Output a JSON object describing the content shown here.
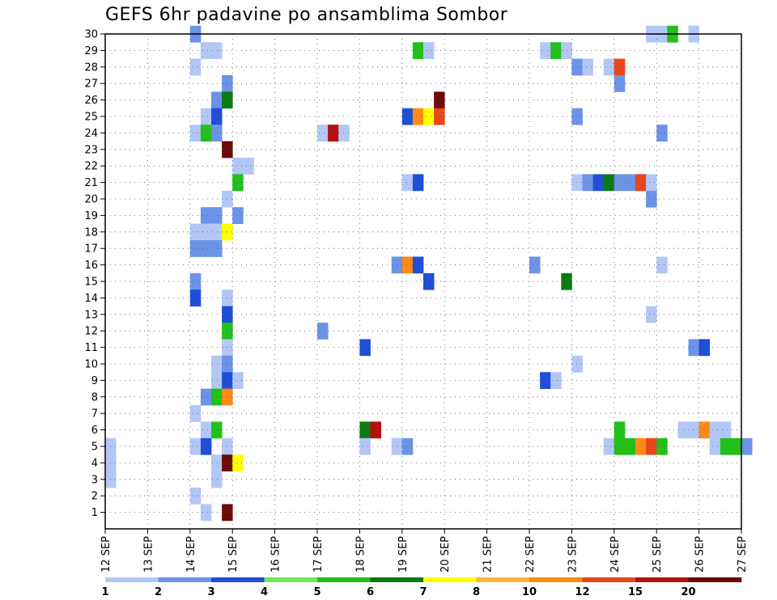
{
  "chart_data": {
    "type": "heatmap",
    "title": "GEFS 6hr padavine po ansamblima Sombor",
    "x_ticks": [
      "12 SEP",
      "13 SEP",
      "14 SEP",
      "15 SEP",
      "16 SEP",
      "17 SEP",
      "18 SEP",
      "19 SEP",
      "20 SEP",
      "21 SEP",
      "22 SEP",
      "23 SEP",
      "24 SEP",
      "25 SEP",
      "26 SEP",
      "27 SEP"
    ],
    "y_ticks": [
      "1",
      "2",
      "3",
      "4",
      "5",
      "6",
      "7",
      "8",
      "9",
      "10",
      "11",
      "12",
      "13",
      "14",
      "15",
      "16",
      "17",
      "18",
      "19",
      "20",
      "21",
      "22",
      "23",
      "24",
      "25",
      "26",
      "27",
      "28",
      "29",
      "30"
    ],
    "steps_per_day": 4,
    "member_range": [
      0,
      30
    ],
    "grid": true,
    "colorbar": {
      "labels": [
        "1",
        "2",
        "3",
        "4",
        "5",
        "6",
        "7",
        "8",
        "10",
        "12",
        "15",
        "20"
      ],
      "colors": [
        "#b3c7f7",
        "#6b93e8",
        "#1f4fd8",
        "#6fe85a",
        "#22c01a",
        "#0e7a12",
        "#ffff00",
        "#ffb43c",
        "#ff8a14",
        "#e8461c",
        "#b5100e",
        "#6e0a0a"
      ]
    },
    "cells": [
      {
        "m": 30,
        "t": 8,
        "v": 2
      },
      {
        "m": 30,
        "t": 51,
        "v": 1
      },
      {
        "m": 30,
        "t": 52,
        "v": 1
      },
      {
        "m": 30,
        "t": 53,
        "v": 5
      },
      {
        "m": 30,
        "t": 55,
        "v": 1
      },
      {
        "m": 29,
        "t": 9,
        "v": 1
      },
      {
        "m": 29,
        "t": 10,
        "v": 1
      },
      {
        "m": 29,
        "t": 29,
        "v": 5
      },
      {
        "m": 29,
        "t": 30,
        "v": 1
      },
      {
        "m": 29,
        "t": 41,
        "v": 1
      },
      {
        "m": 29,
        "t": 42,
        "v": 5
      },
      {
        "m": 29,
        "t": 43,
        "v": 1
      },
      {
        "m": 28,
        "t": 8,
        "v": 1
      },
      {
        "m": 28,
        "t": 44,
        "v": 2
      },
      {
        "m": 28,
        "t": 45,
        "v": 1
      },
      {
        "m": 28,
        "t": 47,
        "v": 1
      },
      {
        "m": 28,
        "t": 48,
        "v": 12
      },
      {
        "m": 27,
        "t": 11,
        "v": 2
      },
      {
        "m": 27,
        "t": 48,
        "v": 2
      },
      {
        "m": 26,
        "t": 10,
        "v": 2
      },
      {
        "m": 26,
        "t": 11,
        "v": 6
      },
      {
        "m": 26,
        "t": 31,
        "v": 20
      },
      {
        "m": 25,
        "t": 9,
        "v": 1
      },
      {
        "m": 25,
        "t": 10,
        "v": 3
      },
      {
        "m": 25,
        "t": 28,
        "v": 3
      },
      {
        "m": 25,
        "t": 29,
        "v": 10
      },
      {
        "m": 25,
        "t": 30,
        "v": 7
      },
      {
        "m": 25,
        "t": 31,
        "v": 12
      },
      {
        "m": 25,
        "t": 44,
        "v": 2
      },
      {
        "m": 24,
        "t": 8,
        "v": 1
      },
      {
        "m": 24,
        "t": 9,
        "v": 5
      },
      {
        "m": 24,
        "t": 10,
        "v": 2
      },
      {
        "m": 24,
        "t": 20,
        "v": 1
      },
      {
        "m": 24,
        "t": 21,
        "v": 15
      },
      {
        "m": 24,
        "t": 22,
        "v": 1
      },
      {
        "m": 24,
        "t": 52,
        "v": 2
      },
      {
        "m": 23,
        "t": 11,
        "v": 20
      },
      {
        "m": 22,
        "t": 12,
        "v": 1
      },
      {
        "m": 22,
        "t": 13,
        "v": 1
      },
      {
        "m": 21,
        "t": 12,
        "v": 5
      },
      {
        "m": 21,
        "t": 28,
        "v": 1
      },
      {
        "m": 21,
        "t": 29,
        "v": 3
      },
      {
        "m": 21,
        "t": 44,
        "v": 1
      },
      {
        "m": 21,
        "t": 45,
        "v": 2
      },
      {
        "m": 21,
        "t": 46,
        "v": 3
      },
      {
        "m": 21,
        "t": 47,
        "v": 6
      },
      {
        "m": 21,
        "t": 48,
        "v": 2
      },
      {
        "m": 21,
        "t": 49,
        "v": 2
      },
      {
        "m": 21,
        "t": 50,
        "v": 12
      },
      {
        "m": 21,
        "t": 51,
        "v": 1
      },
      {
        "m": 20,
        "t": 11,
        "v": 1
      },
      {
        "m": 20,
        "t": 51,
        "v": 2
      },
      {
        "m": 19,
        "t": 9,
        "v": 2
      },
      {
        "m": 19,
        "t": 10,
        "v": 2
      },
      {
        "m": 19,
        "t": 12,
        "v": 2
      },
      {
        "m": 18,
        "t": 8,
        "v": 1
      },
      {
        "m": 18,
        "t": 9,
        "v": 1
      },
      {
        "m": 18,
        "t": 10,
        "v": 1
      },
      {
        "m": 18,
        "t": 11,
        "v": 7
      },
      {
        "m": 17,
        "t": 8,
        "v": 2
      },
      {
        "m": 17,
        "t": 9,
        "v": 2
      },
      {
        "m": 17,
        "t": 10,
        "v": 2
      },
      {
        "m": 16,
        "t": 27,
        "v": 2
      },
      {
        "m": 16,
        "t": 28,
        "v": 10
      },
      {
        "m": 16,
        "t": 29,
        "v": 3
      },
      {
        "m": 16,
        "t": 40,
        "v": 2
      },
      {
        "m": 16,
        "t": 52,
        "v": 1
      },
      {
        "m": 15,
        "t": 8,
        "v": 2
      },
      {
        "m": 15,
        "t": 30,
        "v": 3
      },
      {
        "m": 15,
        "t": 43,
        "v": 6
      },
      {
        "m": 14,
        "t": 8,
        "v": 3
      },
      {
        "m": 14,
        "t": 11,
        "v": 1
      },
      {
        "m": 13,
        "t": 11,
        "v": 3
      },
      {
        "m": 13,
        "t": 51,
        "v": 1
      },
      {
        "m": 12,
        "t": 11,
        "v": 5
      },
      {
        "m": 12,
        "t": 20,
        "v": 2
      },
      {
        "m": 11,
        "t": 11,
        "v": 1
      },
      {
        "m": 11,
        "t": 24,
        "v": 3
      },
      {
        "m": 11,
        "t": 55,
        "v": 2
      },
      {
        "m": 11,
        "t": 56,
        "v": 3
      },
      {
        "m": 10,
        "t": 10,
        "v": 1
      },
      {
        "m": 10,
        "t": 11,
        "v": 2
      },
      {
        "m": 10,
        "t": 44,
        "v": 1
      },
      {
        "m": 9,
        "t": 10,
        "v": 1
      },
      {
        "m": 9,
        "t": 11,
        "v": 3
      },
      {
        "m": 9,
        "t": 12,
        "v": 1
      },
      {
        "m": 9,
        "t": 41,
        "v": 3
      },
      {
        "m": 9,
        "t": 42,
        "v": 1
      },
      {
        "m": 8,
        "t": 9,
        "v": 2
      },
      {
        "m": 8,
        "t": 10,
        "v": 5
      },
      {
        "m": 8,
        "t": 11,
        "v": 10
      },
      {
        "m": 7,
        "t": 8,
        "v": 1
      },
      {
        "m": 6,
        "t": 9,
        "v": 1
      },
      {
        "m": 6,
        "t": 10,
        "v": 5
      },
      {
        "m": 6,
        "t": 24,
        "v": 6
      },
      {
        "m": 6,
        "t": 25,
        "v": 15
      },
      {
        "m": 6,
        "t": 48,
        "v": 5
      },
      {
        "m": 6,
        "t": 54,
        "v": 1
      },
      {
        "m": 6,
        "t": 55,
        "v": 1
      },
      {
        "m": 6,
        "t": 56,
        "v": 10
      },
      {
        "m": 6,
        "t": 57,
        "v": 1
      },
      {
        "m": 6,
        "t": 58,
        "v": 1
      },
      {
        "m": 5,
        "t": 0,
        "v": 1
      },
      {
        "m": 5,
        "t": 8,
        "v": 1
      },
      {
        "m": 5,
        "t": 9,
        "v": 3
      },
      {
        "m": 5,
        "t": 11,
        "v": 1
      },
      {
        "m": 5,
        "t": 24,
        "v": 1
      },
      {
        "m": 5,
        "t": 27,
        "v": 1
      },
      {
        "m": 5,
        "t": 28,
        "v": 2
      },
      {
        "m": 5,
        "t": 47,
        "v": 1
      },
      {
        "m": 5,
        "t": 48,
        "v": 5
      },
      {
        "m": 5,
        "t": 49,
        "v": 5
      },
      {
        "m": 5,
        "t": 50,
        "v": 10
      },
      {
        "m": 5,
        "t": 51,
        "v": 12
      },
      {
        "m": 5,
        "t": 52,
        "v": 5
      },
      {
        "m": 5,
        "t": 57,
        "v": 1
      },
      {
        "m": 5,
        "t": 58,
        "v": 5
      },
      {
        "m": 5,
        "t": 59,
        "v": 5
      },
      {
        "m": 5,
        "t": 60,
        "v": 2
      },
      {
        "m": 4,
        "t": 0,
        "v": 1
      },
      {
        "m": 4,
        "t": 10,
        "v": 1
      },
      {
        "m": 4,
        "t": 11,
        "v": 20
      },
      {
        "m": 4,
        "t": 12,
        "v": 7
      },
      {
        "m": 3,
        "t": 0,
        "v": 1
      },
      {
        "m": 3,
        "t": 10,
        "v": 1
      },
      {
        "m": 2,
        "t": 8,
        "v": 1
      },
      {
        "m": 1,
        "t": 9,
        "v": 1
      },
      {
        "m": 1,
        "t": 11,
        "v": 20
      }
    ]
  }
}
